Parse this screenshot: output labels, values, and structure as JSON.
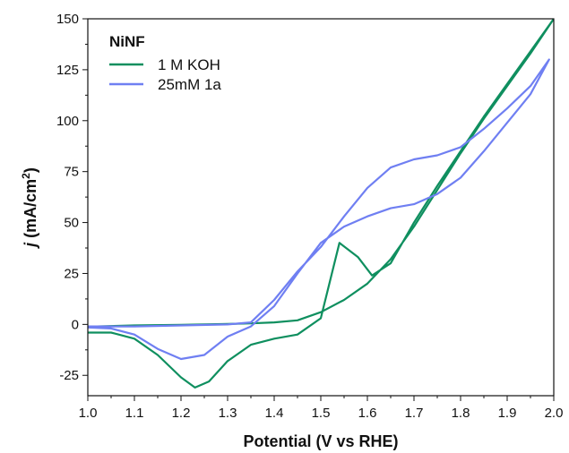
{
  "chart_data": {
    "type": "line",
    "xlabel": "Potential (V vs RHE)",
    "ylabel_italic": "j",
    "ylabel_main": " (mA/cm",
    "ylabel_sup": "2",
    "ylabel_end": ")",
    "xlim": [
      1.0,
      2.0
    ],
    "ylim": [
      -35,
      150
    ],
    "xticks": [
      1.0,
      1.1,
      1.2,
      1.3,
      1.4,
      1.5,
      1.6,
      1.7,
      1.8,
      1.9,
      2.0
    ],
    "xtick_labels": [
      "1.0",
      "1.1",
      "1.2",
      "1.3",
      "1.4",
      "1.5",
      "1.6",
      "1.7",
      "1.8",
      "1.9",
      "2.0"
    ],
    "yticks": [
      -25,
      0,
      25,
      50,
      75,
      100,
      125,
      150
    ],
    "ytick_labels": [
      "-25",
      "0",
      "25",
      "50",
      "75",
      "100",
      "125",
      "150"
    ],
    "grid": false,
    "legend": {
      "title": "NiNF",
      "placement": "top-left"
    },
    "series": [
      {
        "name": "1 M KOH",
        "color": "#0f8f5f",
        "points": [
          [
            1.0,
            -4
          ],
          [
            1.05,
            -4
          ],
          [
            1.1,
            -7
          ],
          [
            1.15,
            -15
          ],
          [
            1.2,
            -26
          ],
          [
            1.23,
            -31
          ],
          [
            1.26,
            -28
          ],
          [
            1.3,
            -18
          ],
          [
            1.35,
            -10
          ],
          [
            1.4,
            -7
          ],
          [
            1.45,
            -5
          ],
          [
            1.5,
            3
          ],
          [
            1.54,
            40
          ],
          [
            1.58,
            33
          ],
          [
            1.61,
            24
          ],
          [
            1.65,
            30
          ],
          [
            1.7,
            50
          ],
          [
            1.75,
            68
          ],
          [
            1.8,
            85
          ],
          [
            1.85,
            102
          ],
          [
            1.9,
            118
          ],
          [
            1.95,
            134
          ],
          [
            2.0,
            150
          ],
          [
            1.95,
            133
          ],
          [
            1.9,
            117
          ],
          [
            1.85,
            101
          ],
          [
            1.8,
            84
          ],
          [
            1.75,
            66
          ],
          [
            1.7,
            48
          ],
          [
            1.65,
            32
          ],
          [
            1.6,
            20
          ],
          [
            1.55,
            12
          ],
          [
            1.5,
            6
          ],
          [
            1.45,
            2
          ],
          [
            1.4,
            1
          ],
          [
            1.35,
            0.5
          ],
          [
            1.3,
            0.2
          ],
          [
            1.2,
            -0.2
          ],
          [
            1.1,
            -0.5
          ],
          [
            1.02,
            -1
          ]
        ]
      },
      {
        "name": "25mM 1a",
        "color": "#6f7ff2",
        "points": [
          [
            1.0,
            -1
          ],
          [
            1.1,
            -1
          ],
          [
            1.2,
            -0.5
          ],
          [
            1.3,
            0
          ],
          [
            1.35,
            1
          ],
          [
            1.4,
            12
          ],
          [
            1.45,
            26
          ],
          [
            1.5,
            38
          ],
          [
            1.55,
            53
          ],
          [
            1.6,
            67
          ],
          [
            1.65,
            77
          ],
          [
            1.7,
            81
          ],
          [
            1.75,
            83
          ],
          [
            1.8,
            87
          ],
          [
            1.85,
            96
          ],
          [
            1.9,
            106
          ],
          [
            1.95,
            117
          ],
          [
            1.99,
            130
          ],
          [
            1.95,
            113
          ],
          [
            1.9,
            99
          ],
          [
            1.85,
            85
          ],
          [
            1.8,
            72
          ],
          [
            1.75,
            64
          ],
          [
            1.7,
            59
          ],
          [
            1.65,
            57
          ],
          [
            1.6,
            53
          ],
          [
            1.55,
            48
          ],
          [
            1.5,
            40
          ],
          [
            1.45,
            25
          ],
          [
            1.4,
            9
          ],
          [
            1.35,
            -1
          ],
          [
            1.3,
            -6
          ],
          [
            1.25,
            -15
          ],
          [
            1.2,
            -17
          ],
          [
            1.15,
            -12
          ],
          [
            1.1,
            -5
          ],
          [
            1.05,
            -2
          ],
          [
            1.0,
            -1.5
          ]
        ]
      }
    ]
  }
}
